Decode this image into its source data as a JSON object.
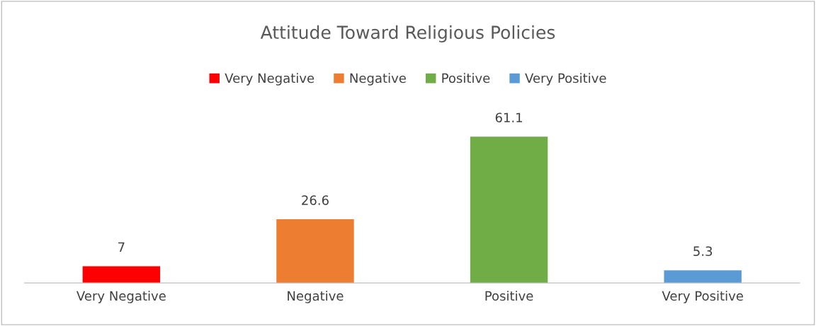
{
  "chart_data": {
    "type": "bar",
    "title": "Attitude Toward Religious Policies",
    "categories": [
      "Very Negative",
      "Negative",
      "Positive",
      "Very Positive"
    ],
    "stacked": true,
    "series": [
      {
        "name": "Very Negative",
        "color": "#ff0000",
        "values": [
          7,
          null,
          null,
          null
        ]
      },
      {
        "name": "Negative",
        "color": "#ed7d31",
        "values": [
          null,
          26.6,
          null,
          null
        ]
      },
      {
        "name": "Positive",
        "color": "#70ad47",
        "values": [
          null,
          null,
          61.1,
          null
        ]
      },
      {
        "name": "Very Positive",
        "color": "#5b9bd5",
        "values": [
          null,
          null,
          null,
          5.3
        ]
      }
    ],
    "data_labels": true,
    "legend": "top"
  }
}
